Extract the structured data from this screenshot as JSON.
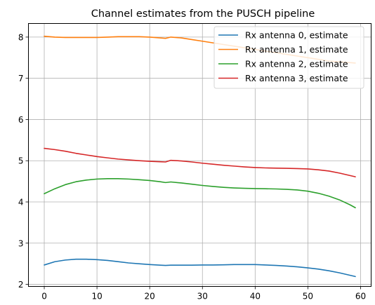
{
  "chart_data": {
    "type": "line",
    "title": "Channel estimates from the PUSCH pipeline",
    "xlabel": "",
    "ylabel": "",
    "xlim": [
      -3,
      62
    ],
    "ylim": [
      1.95,
      8.33
    ],
    "xticks": [
      0,
      10,
      20,
      30,
      40,
      50,
      60
    ],
    "yticks": [
      2,
      3,
      4,
      5,
      6,
      7,
      8
    ],
    "grid": true,
    "legend_position": "top-right",
    "series": [
      {
        "name": "Rx antenna 0, estimate",
        "color": "#1f77b4",
        "x": [
          0,
          2,
          4,
          6,
          8,
          10,
          12,
          14,
          16,
          18,
          20,
          22,
          23,
          24,
          26,
          28,
          30,
          32,
          34,
          36,
          38,
          40,
          42,
          44,
          46,
          48,
          50,
          52,
          54,
          56,
          58,
          59
        ],
        "y": [
          2.47,
          2.55,
          2.59,
          2.61,
          2.61,
          2.6,
          2.58,
          2.55,
          2.52,
          2.5,
          2.48,
          2.465,
          2.46,
          2.465,
          2.465,
          2.465,
          2.47,
          2.47,
          2.475,
          2.48,
          2.48,
          2.48,
          2.47,
          2.46,
          2.445,
          2.425,
          2.4,
          2.37,
          2.33,
          2.28,
          2.22,
          2.19
        ]
      },
      {
        "name": "Rx antenna 1, estimate",
        "color": "#ff7f0e",
        "x": [
          0,
          2,
          4,
          6,
          8,
          10,
          12,
          14,
          16,
          18,
          20,
          22,
          23,
          24,
          26,
          28,
          30,
          32,
          34,
          36,
          38,
          40,
          42,
          44,
          46,
          48,
          50,
          52,
          54,
          56,
          58,
          59
        ],
        "y": [
          8.02,
          8.0,
          7.99,
          7.99,
          7.99,
          7.99,
          8.0,
          8.01,
          8.01,
          8.01,
          8.0,
          7.98,
          7.97,
          8.0,
          7.98,
          7.94,
          7.9,
          7.86,
          7.82,
          7.78,
          7.74,
          7.7,
          7.66,
          7.62,
          7.58,
          7.54,
          7.5,
          7.46,
          7.42,
          7.4,
          7.38,
          7.37
        ]
      },
      {
        "name": "Rx antenna 2, estimate",
        "color": "#2ca02c",
        "x": [
          0,
          2,
          4,
          6,
          8,
          10,
          12,
          14,
          16,
          18,
          20,
          22,
          23,
          24,
          26,
          28,
          30,
          32,
          34,
          36,
          38,
          40,
          42,
          44,
          46,
          48,
          50,
          52,
          54,
          56,
          58,
          59
        ],
        "y": [
          4.2,
          4.32,
          4.42,
          4.49,
          4.53,
          4.555,
          4.565,
          4.565,
          4.555,
          4.54,
          4.52,
          4.49,
          4.47,
          4.485,
          4.46,
          4.43,
          4.4,
          4.375,
          4.355,
          4.34,
          4.33,
          4.325,
          4.32,
          4.315,
          4.305,
          4.29,
          4.26,
          4.21,
          4.14,
          4.05,
          3.93,
          3.86
        ]
      },
      {
        "name": "Rx antenna 3, estimate",
        "color": "#d62728",
        "x": [
          0,
          2,
          4,
          6,
          8,
          10,
          12,
          14,
          16,
          18,
          20,
          22,
          23,
          24,
          26,
          28,
          30,
          32,
          34,
          36,
          38,
          40,
          42,
          44,
          46,
          48,
          50,
          52,
          54,
          56,
          58,
          59
        ],
        "y": [
          5.3,
          5.27,
          5.23,
          5.18,
          5.14,
          5.1,
          5.07,
          5.04,
          5.02,
          5.0,
          4.985,
          4.975,
          4.97,
          5.01,
          4.995,
          4.97,
          4.94,
          4.915,
          4.89,
          4.87,
          4.85,
          4.835,
          4.825,
          4.82,
          4.815,
          4.81,
          4.8,
          4.78,
          4.75,
          4.7,
          4.64,
          4.61
        ]
      }
    ]
  }
}
